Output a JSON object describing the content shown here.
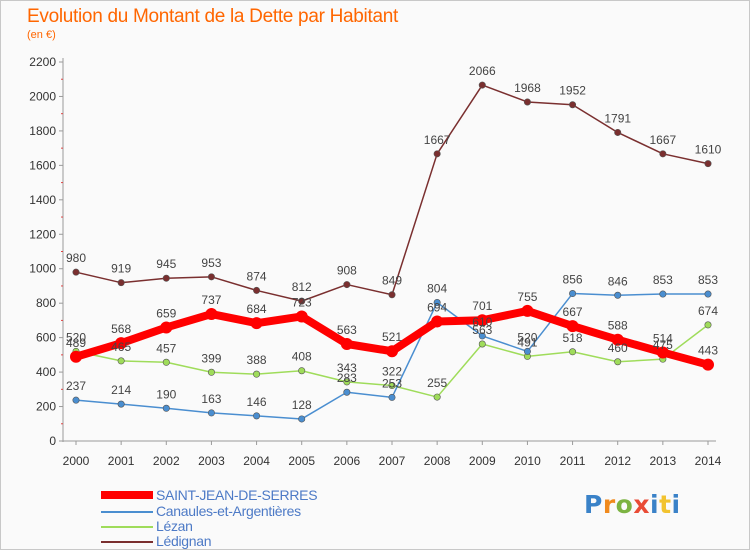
{
  "chart_data": {
    "type": "line",
    "title": "Evolution du Montant de la Dette par Habitant",
    "ylabel": "(en €)",
    "xlabel": "",
    "ylim": [
      0,
      2200
    ],
    "y_ticks": [
      0,
      200,
      400,
      600,
      800,
      1000,
      1200,
      1400,
      1600,
      1800,
      2000,
      2200
    ],
    "x": [
      "2000",
      "2001",
      "2002",
      "2003",
      "2004",
      "2005",
      "2006",
      "2007",
      "2008",
      "2009",
      "2010",
      "2011",
      "2012",
      "2013",
      "2014"
    ],
    "grid": false,
    "legend_position": "bottom-left",
    "series": [
      {
        "name": "SAINT-JEAN-DE-SERRES",
        "color": "#ff0000",
        "values": [
          489,
          568,
          659,
          737,
          684,
          723,
          563,
          521,
          694,
          701,
          755,
          667,
          588,
          514,
          443
        ]
      },
      {
        "name": "Canaules-et-Argentières",
        "color": "#4a8ed0",
        "values": [
          237,
          214,
          190,
          163,
          146,
          128,
          283,
          253,
          804,
          610,
          520,
          856,
          846,
          853,
          853
        ]
      },
      {
        "name": "Lézan",
        "color": "#9fdc5a",
        "values": [
          520,
          465,
          457,
          399,
          388,
          408,
          343,
          322,
          255,
          563,
          491,
          518,
          460,
          475,
          674
        ]
      },
      {
        "name": "Lédignan",
        "color": "#7a2f2f",
        "values": [
          980,
          919,
          945,
          953,
          874,
          812,
          908,
          849,
          1667,
          2066,
          1968,
          1952,
          1791,
          1667,
          1610
        ]
      }
    ]
  },
  "logo": {
    "p": "P",
    "r": "r",
    "o": "o",
    "x": "x",
    "i": "i",
    "t": "t",
    "i2": "i"
  }
}
